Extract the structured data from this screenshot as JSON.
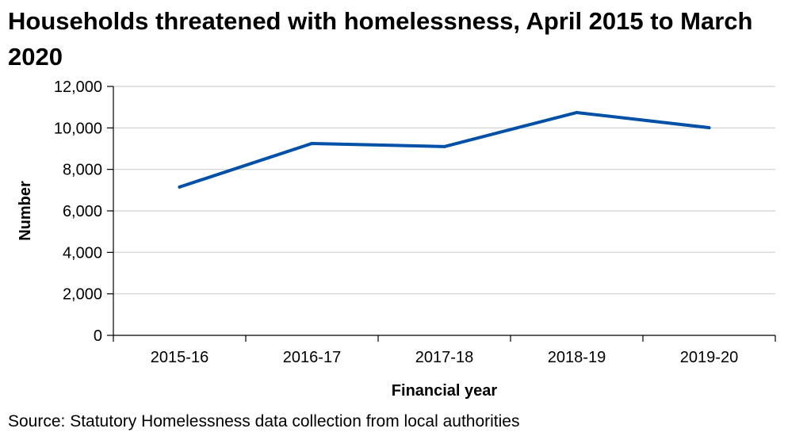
{
  "chart_data": {
    "type": "line",
    "title": "Households threatened with homelessness, April 2015 to March 2020",
    "xlabel": "Financial year",
    "ylabel": "Number",
    "categories": [
      "2015-16",
      "2016-17",
      "2017-18",
      "2018-19",
      "2019-20"
    ],
    "series": [
      {
        "name": "Households threatened with homelessness",
        "values": [
          7150,
          9250,
          9100,
          10740,
          10010
        ],
        "color": "#0050a8"
      }
    ],
    "ylim": [
      0,
      12000
    ],
    "yticks": [
      0,
      2000,
      4000,
      6000,
      8000,
      10000,
      12000
    ],
    "ytick_labels": [
      "0",
      "2,000",
      "4,000",
      "6,000",
      "8,000",
      "10,000",
      "12,000"
    ],
    "grid": true,
    "legend": "none"
  },
  "source": "Source: Statutory Homelessness data collection from local authorities"
}
